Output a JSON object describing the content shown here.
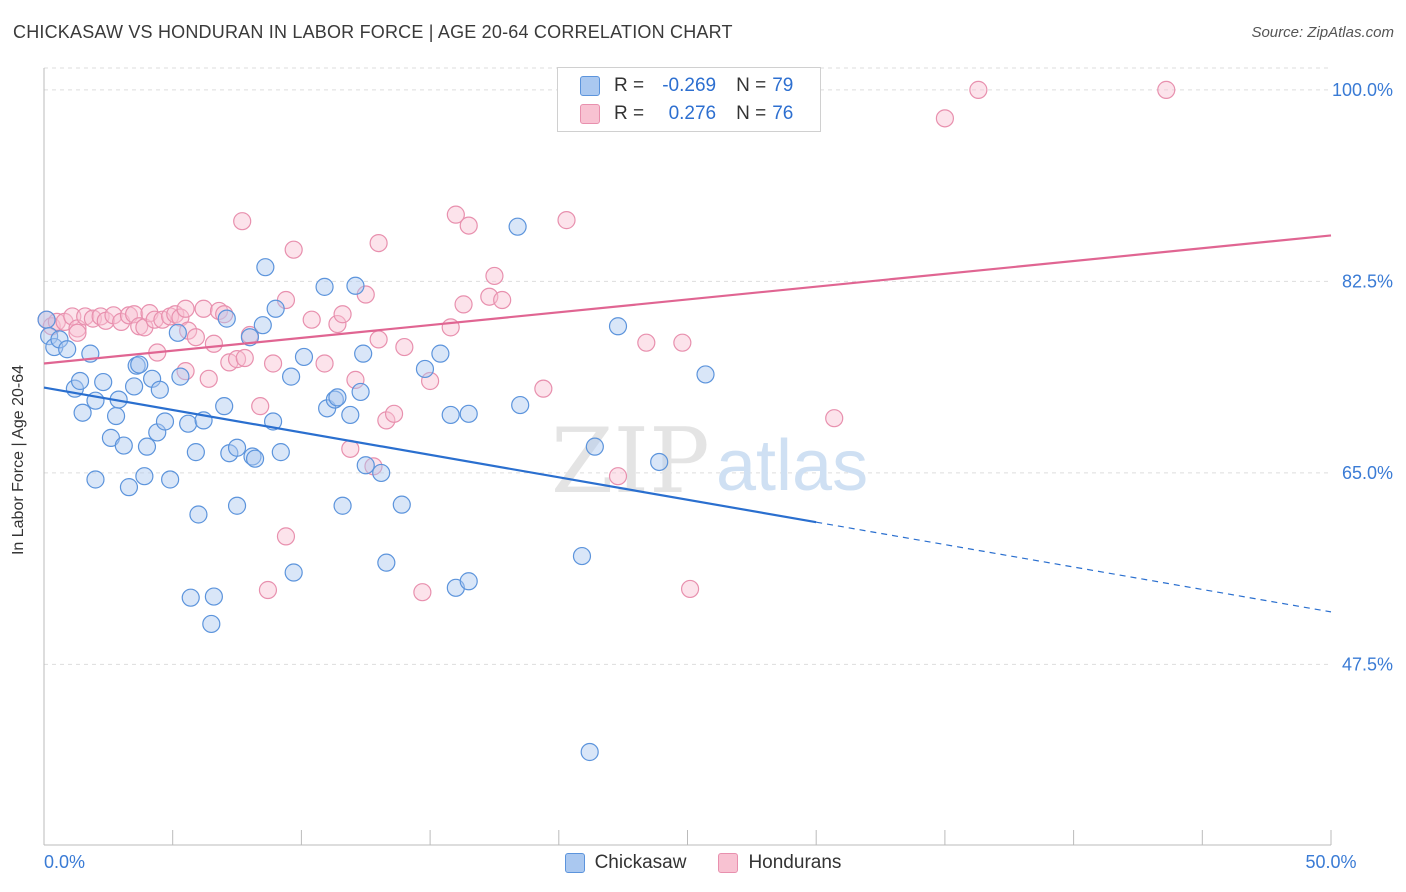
{
  "title": "CHICKASAW VS HONDURAN IN LABOR FORCE | AGE 20-64 CORRELATION CHART",
  "source": "Source: ZipAtlas.com",
  "watermark": {
    "zip": "ZIP",
    "atlas": "atlas"
  },
  "legend": {
    "rows": [
      {
        "r_label": "R =",
        "r_value": "-0.269",
        "n_label": "N =",
        "n_value": "79"
      },
      {
        "r_label": "R =",
        "r_value": "0.276",
        "n_label": "N =",
        "n_value": "76"
      }
    ]
  },
  "bottom_legend": {
    "series1": "Chickasaw",
    "series2": "Hondurans"
  },
  "x_tick_labels": {
    "left": "0.0%",
    "right": "50.0%"
  },
  "colors": {
    "chickasaw_fill": "#aac8f0",
    "chickasaw_stroke": "#5c94dc",
    "chickasaw_line": "#2a6fcf",
    "hondurans_fill": "#f8c2d2",
    "hondurans_stroke": "#e890ae",
    "hondurans_line": "#e06592",
    "tick_label": "#3a7bd5",
    "grid": "#dddddd"
  },
  "chart_data": {
    "type": "scatter",
    "title": "CHICKASAW VS HONDURAN IN LABOR FORCE | AGE 20-64 CORRELATION CHART",
    "xlabel": "",
    "ylabel": "In Labor Force | Age 20-64",
    "xlim": [
      0,
      50
    ],
    "ylim": [
      31,
      102
    ],
    "y_ticks": [
      47.5,
      65.0,
      82.5,
      100.0
    ],
    "y_tick_labels": [
      "47.5%",
      "65.0%",
      "82.5%",
      "100.0%"
    ],
    "grid": true,
    "legend_position": "top-center",
    "series": [
      {
        "name": "Chickasaw",
        "R": -0.269,
        "N": 79,
        "trend": {
          "x_start": 0,
          "y_start": 72.8,
          "x_solid_end": 30,
          "y_solid_end": 60.5,
          "x_end": 50,
          "y_end": 52.3
        },
        "points": [
          [
            0.1,
            79.0
          ],
          [
            0.2,
            77.5
          ],
          [
            0.4,
            76.5
          ],
          [
            0.6,
            77.2
          ],
          [
            0.9,
            76.3
          ],
          [
            1.2,
            72.7
          ],
          [
            1.4,
            73.4
          ],
          [
            1.8,
            75.9
          ],
          [
            1.5,
            70.5
          ],
          [
            2.0,
            71.6
          ],
          [
            2.3,
            73.3
          ],
          [
            2.0,
            64.4
          ],
          [
            2.6,
            68.2
          ],
          [
            2.8,
            70.2
          ],
          [
            2.9,
            71.7
          ],
          [
            3.1,
            67.5
          ],
          [
            3.3,
            63.7
          ],
          [
            3.5,
            72.9
          ],
          [
            3.6,
            74.8
          ],
          [
            3.7,
            74.9
          ],
          [
            3.9,
            64.7
          ],
          [
            4.0,
            67.4
          ],
          [
            4.2,
            73.6
          ],
          [
            4.4,
            68.7
          ],
          [
            4.5,
            72.6
          ],
          [
            4.7,
            69.7
          ],
          [
            4.9,
            64.4
          ],
          [
            5.2,
            77.8
          ],
          [
            5.3,
            73.8
          ],
          [
            5.6,
            69.5
          ],
          [
            5.9,
            66.9
          ],
          [
            6.0,
            61.2
          ],
          [
            6.2,
            69.8
          ],
          [
            6.6,
            53.7
          ],
          [
            7.0,
            71.1
          ],
          [
            7.1,
            79.1
          ],
          [
            7.2,
            66.8
          ],
          [
            7.5,
            62.0
          ],
          [
            7.5,
            67.3
          ],
          [
            8.0,
            77.4
          ],
          [
            8.1,
            66.5
          ],
          [
            8.2,
            66.3
          ],
          [
            8.5,
            78.5
          ],
          [
            8.6,
            83.8
          ],
          [
            8.9,
            69.7
          ],
          [
            9.0,
            80.0
          ],
          [
            9.2,
            66.9
          ],
          [
            9.6,
            73.8
          ],
          [
            9.7,
            55.9
          ],
          [
            10.1,
            75.6
          ],
          [
            10.9,
            82.0
          ],
          [
            11.0,
            70.9
          ],
          [
            11.3,
            71.7
          ],
          [
            11.4,
            71.9
          ],
          [
            11.6,
            62.0
          ],
          [
            11.9,
            70.3
          ],
          [
            12.1,
            82.1
          ],
          [
            12.3,
            72.4
          ],
          [
            12.4,
            75.9
          ],
          [
            12.5,
            65.7
          ],
          [
            13.1,
            65.0
          ],
          [
            13.3,
            56.8
          ],
          [
            13.9,
            62.1
          ],
          [
            14.8,
            74.5
          ],
          [
            15.4,
            75.9
          ],
          [
            15.8,
            70.3
          ],
          [
            16.0,
            54.5
          ],
          [
            16.5,
            55.1
          ],
          [
            16.5,
            70.4
          ],
          [
            18.4,
            87.5
          ],
          [
            18.5,
            71.2
          ],
          [
            20.9,
            57.4
          ],
          [
            21.2,
            39.5
          ],
          [
            21.4,
            67.4
          ],
          [
            22.3,
            78.4
          ],
          [
            23.9,
            66.0
          ],
          [
            25.7,
            74.0
          ],
          [
            5.7,
            53.6
          ],
          [
            6.5,
            51.2
          ]
        ]
      },
      {
        "name": "Hondurans",
        "R": 0.276,
        "N": 76,
        "trend": {
          "x_start": 0,
          "y_start": 75.0,
          "x_end": 50,
          "y_end": 86.7
        },
        "points": [
          [
            0.1,
            79.0
          ],
          [
            0.3,
            78.4
          ],
          [
            0.5,
            78.8
          ],
          [
            0.8,
            78.8
          ],
          [
            1.1,
            79.3
          ],
          [
            1.3,
            78.2
          ],
          [
            1.6,
            79.3
          ],
          [
            1.9,
            79.1
          ],
          [
            2.2,
            79.3
          ],
          [
            2.4,
            78.9
          ],
          [
            2.7,
            79.4
          ],
          [
            3.0,
            78.8
          ],
          [
            3.3,
            79.4
          ],
          [
            3.5,
            79.5
          ],
          [
            3.7,
            78.4
          ],
          [
            3.9,
            78.3
          ],
          [
            4.1,
            79.6
          ],
          [
            4.3,
            79.0
          ],
          [
            4.4,
            76.0
          ],
          [
            4.6,
            79.0
          ],
          [
            4.9,
            79.3
          ],
          [
            5.1,
            79.5
          ],
          [
            5.3,
            79.2
          ],
          [
            5.5,
            74.3
          ],
          [
            5.6,
            78.0
          ],
          [
            5.9,
            77.4
          ],
          [
            6.2,
            80.0
          ],
          [
            6.4,
            73.6
          ],
          [
            6.6,
            76.8
          ],
          [
            6.8,
            79.8
          ],
          [
            7.0,
            79.5
          ],
          [
            7.2,
            75.1
          ],
          [
            7.5,
            75.4
          ],
          [
            7.7,
            88.0
          ],
          [
            7.8,
            75.5
          ],
          [
            8.0,
            77.6
          ],
          [
            8.4,
            71.1
          ],
          [
            8.7,
            54.3
          ],
          [
            8.9,
            75.0
          ],
          [
            9.4,
            80.8
          ],
          [
            9.7,
            85.4
          ],
          [
            10.4,
            79.0
          ],
          [
            10.9,
            75.0
          ],
          [
            11.4,
            78.6
          ],
          [
            11.6,
            79.5
          ],
          [
            11.9,
            67.2
          ],
          [
            12.1,
            73.5
          ],
          [
            12.5,
            81.3
          ],
          [
            12.8,
            65.6
          ],
          [
            13.0,
            77.2
          ],
          [
            13.3,
            69.8
          ],
          [
            13.6,
            70.4
          ],
          [
            14.0,
            76.5
          ],
          [
            14.7,
            54.1
          ],
          [
            15.0,
            73.4
          ],
          [
            15.8,
            78.3
          ],
          [
            16.0,
            88.6
          ],
          [
            16.3,
            80.4
          ],
          [
            16.5,
            87.6
          ],
          [
            17.3,
            81.1
          ],
          [
            17.5,
            83.0
          ],
          [
            17.8,
            80.8
          ],
          [
            19.4,
            72.7
          ],
          [
            20.3,
            88.1
          ],
          [
            22.3,
            64.7
          ],
          [
            23.4,
            76.9
          ],
          [
            24.8,
            76.9
          ],
          [
            25.1,
            54.4
          ],
          [
            30.7,
            70.0
          ],
          [
            35.0,
            97.4
          ],
          [
            36.3,
            100.0
          ],
          [
            43.6,
            100.0
          ],
          [
            13.0,
            86.0
          ],
          [
            9.4,
            59.2
          ],
          [
            1.3,
            77.8
          ],
          [
            5.5,
            80.0
          ]
        ]
      }
    ]
  }
}
